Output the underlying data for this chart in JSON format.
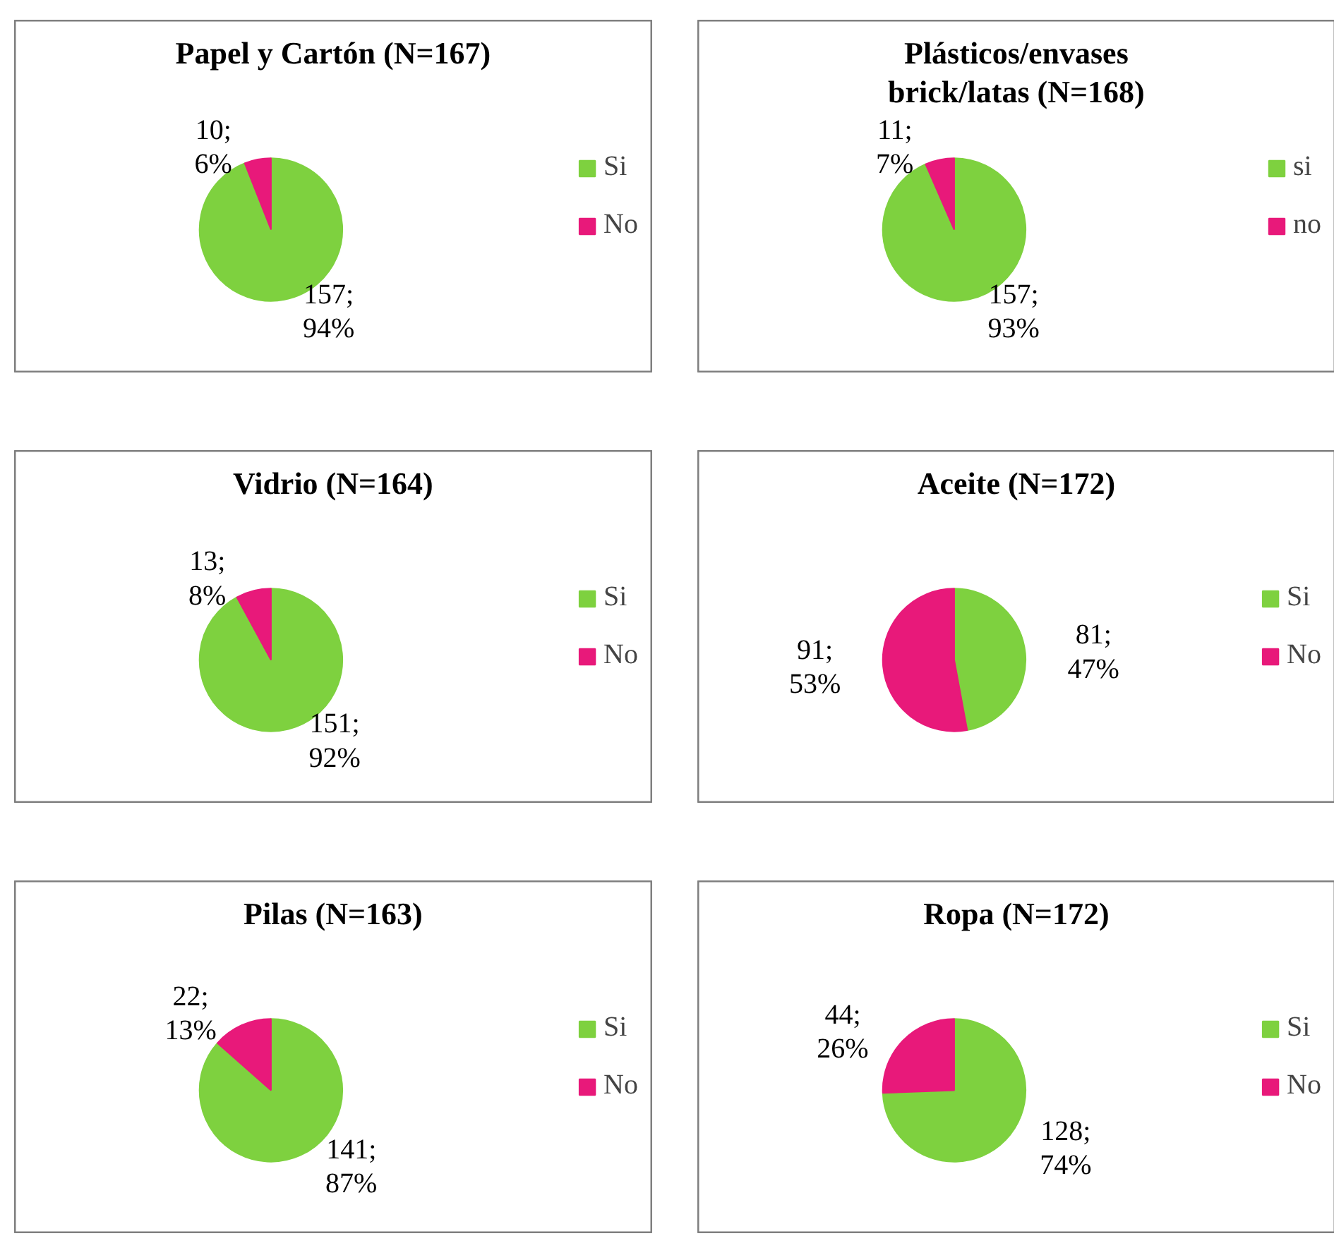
{
  "chart_data": [
    {
      "type": "pie",
      "title": "Papel y Cartón (N=167)",
      "categories": [
        "Si",
        "No"
      ],
      "values": [
        157,
        10
      ],
      "colors": [
        "#7ed13f",
        "#e8197a"
      ],
      "value_labels": [
        "157;\n94%",
        "10;\n6%"
      ],
      "legend": "right"
    },
    {
      "type": "pie",
      "title": "Plásticos/envases\nbrick/latas (N=168)",
      "categories": [
        "si",
        "no"
      ],
      "values": [
        157,
        11
      ],
      "colors": [
        "#7ed13f",
        "#e8197a"
      ],
      "value_labels": [
        "157;\n93%",
        "11;\n7%"
      ],
      "legend": "right"
    },
    {
      "type": "pie",
      "title": "Vidrio (N=164)",
      "categories": [
        "Si",
        "No"
      ],
      "values": [
        151,
        13
      ],
      "colors": [
        "#7ed13f",
        "#e8197a"
      ],
      "value_labels": [
        "151;\n92%",
        "13;\n8%"
      ],
      "legend": "right"
    },
    {
      "type": "pie",
      "title": "Aceite (N=172)",
      "categories": [
        "Si",
        "No"
      ],
      "values": [
        81,
        91
      ],
      "colors": [
        "#7ed13f",
        "#e8197a"
      ],
      "value_labels": [
        "81;\n47%",
        "91;\n53%"
      ],
      "legend": "right"
    },
    {
      "type": "pie",
      "title": "Pilas (N=163)",
      "categories": [
        "Si",
        "No"
      ],
      "values": [
        141,
        22
      ],
      "colors": [
        "#7ed13f",
        "#e8197a"
      ],
      "value_labels": [
        "141;\n87%",
        "22;\n13%"
      ],
      "legend": "right"
    },
    {
      "type": "pie",
      "title": "Ropa (N=172)",
      "categories": [
        "Si",
        "No"
      ],
      "values": [
        128,
        44
      ],
      "colors": [
        "#7ed13f",
        "#e8197a"
      ],
      "value_labels": [
        "128;\n74%",
        "44;\n26%"
      ],
      "legend": "right"
    }
  ]
}
